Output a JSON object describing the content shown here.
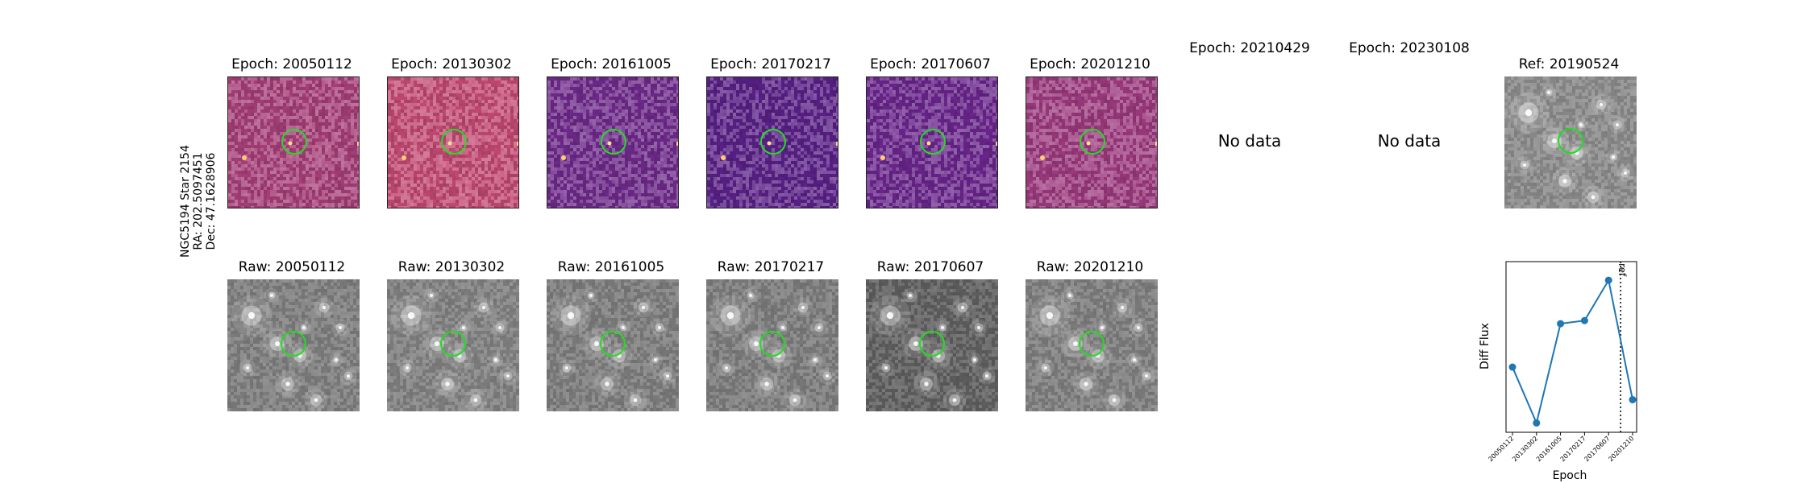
{
  "star_label": {
    "name": "NGC5194 Star 2154",
    "ra": "RA: 202.5097451",
    "dec": "Dec: 47.1628906"
  },
  "diff_row": [
    {
      "title": "Epoch: 20050112",
      "bg": "#a63f78",
      "has_data": true
    },
    {
      "title": "Epoch: 20130302",
      "bg": "#c24a72",
      "has_data": true
    },
    {
      "title": "Epoch: 20161005",
      "bg": "#6e2a8a",
      "has_data": true
    },
    {
      "title": "Epoch: 20170217",
      "bg": "#5a2187",
      "has_data": true
    },
    {
      "title": "Epoch: 20170607",
      "bg": "#6a268c",
      "has_data": true
    },
    {
      "title": "Epoch: 20201210",
      "bg": "#9c3a7e",
      "has_data": true
    },
    {
      "title": "Epoch: 20210429",
      "has_data": false,
      "nodata": "No data"
    },
    {
      "title": "Epoch: 20230108",
      "has_data": false,
      "nodata": "No data"
    },
    {
      "title": "Ref: 20190524",
      "bg": "#8a8a8a",
      "has_data": true
    }
  ],
  "raw_row": [
    {
      "title": "Raw: 20050112",
      "bg": "#7c7c7c"
    },
    {
      "title": "Raw: 20130302",
      "bg": "#7f7f7f"
    },
    {
      "title": "Raw: 20161005",
      "bg": "#7b7b7b"
    },
    {
      "title": "Raw: 20170217",
      "bg": "#7a7a7a"
    },
    {
      "title": "Raw: 20170607",
      "bg": "#5e5e5e"
    },
    {
      "title": "Raw: 20201210",
      "bg": "#7d7d7d"
    }
  ],
  "colors": {
    "circle": "#22dd22",
    "series": "#1f77b4"
  },
  "chart_data": {
    "type": "line",
    "xlabel": "Epoch",
    "ylabel": "Diff Flux",
    "x": [
      "20050112",
      "20130302",
      "20161005",
      "20170217",
      "20170607",
      "20201210"
    ],
    "values": [
      0.42,
      0.06,
      0.7,
      0.72,
      0.98,
      0.21
    ],
    "ylim": [
      0,
      1.1
    ],
    "ref_line": {
      "label": "ref",
      "position_between": [
        "20170607",
        "20201210"
      ],
      "style": "dotted"
    }
  }
}
